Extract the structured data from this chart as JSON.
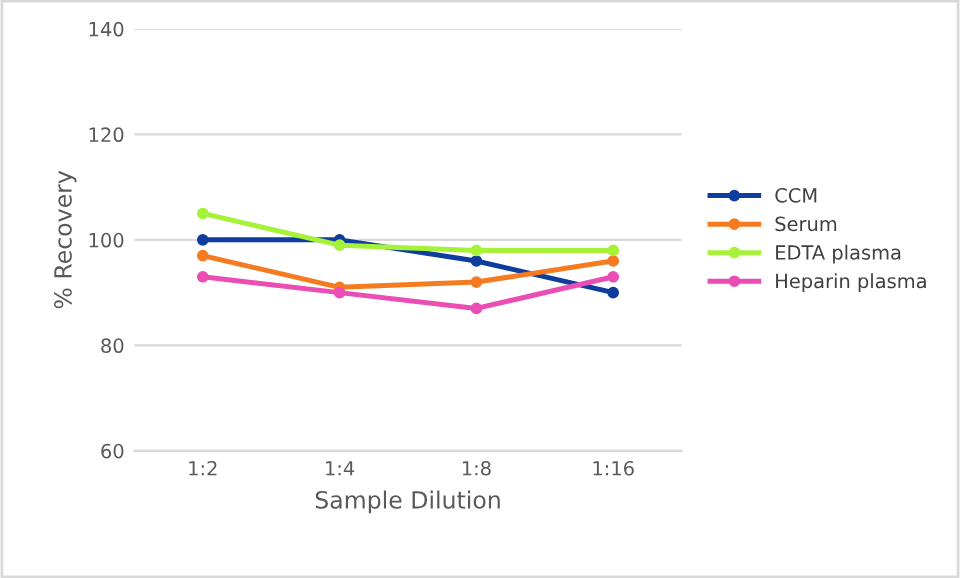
{
  "chart_data": {
    "type": "line",
    "xlabel": "Sample Dilution",
    "ylabel": "% Recovery",
    "categories": [
      "1:2",
      "1:4",
      "1:8",
      "1:16"
    ],
    "series": [
      {
        "name": "CCM",
        "color": "#0e3d9e",
        "values": [
          100,
          100,
          96,
          90
        ]
      },
      {
        "name": "Serum",
        "color": "#f47b20",
        "values": [
          97,
          91,
          92,
          96
        ]
      },
      {
        "name": "EDTA plasma",
        "color": "#a6f23a",
        "values": [
          105,
          99,
          98,
          98
        ]
      },
      {
        "name": "Heparin plasma",
        "color": "#ea4db3",
        "values": [
          93,
          90,
          87,
          93
        ]
      }
    ],
    "ylim": [
      60,
      140
    ],
    "yticks": [
      60,
      80,
      100,
      120,
      140
    ],
    "grid": "y",
    "legend": "right",
    "marker": "circle",
    "line_style": "solid"
  }
}
